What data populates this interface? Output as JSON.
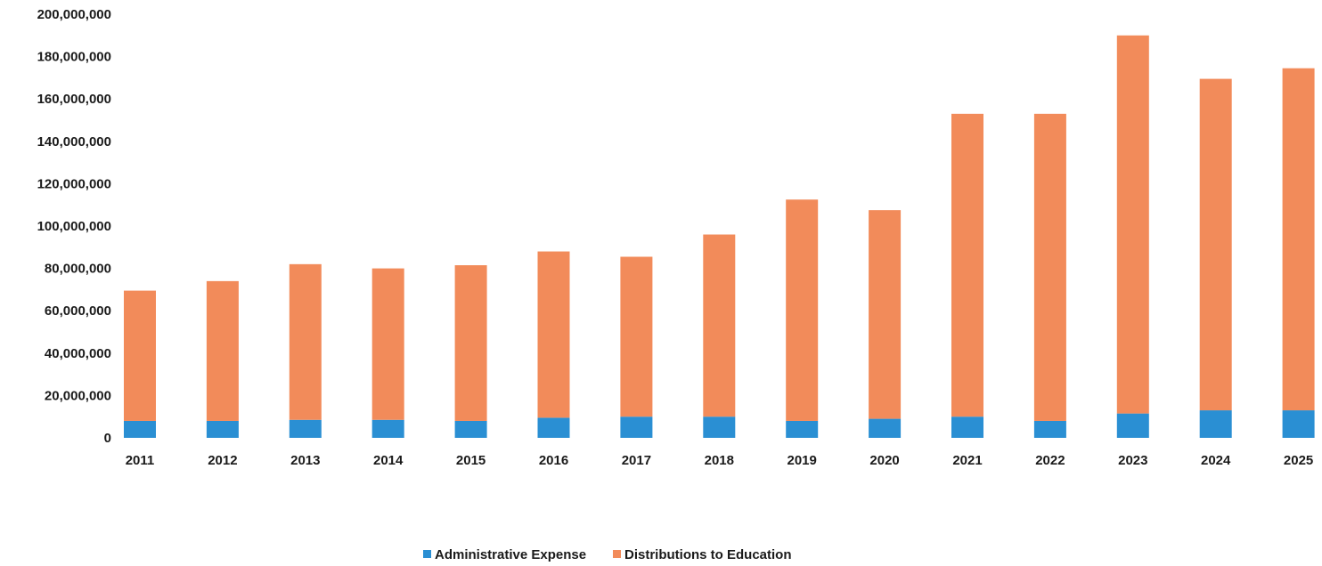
{
  "chart_data": {
    "type": "bar",
    "stacked": true,
    "title": "",
    "xlabel": "",
    "ylabel": "",
    "categories": [
      "2011",
      "2012",
      "2013",
      "2014",
      "2015",
      "2016",
      "2017",
      "2018",
      "2019",
      "2020",
      "2021",
      "2022",
      "2023",
      "2024",
      "2025"
    ],
    "y_ticks": [
      "0",
      "20,000,000",
      "40,000,000",
      "60,000,000",
      "80,000,000",
      "100,000,000",
      "120,000,000",
      "140,000,000",
      "160,000,000",
      "180,000,000",
      "200,000,000"
    ],
    "ylim": [
      0,
      200000000
    ],
    "grid": false,
    "legend_position": "bottom",
    "series": [
      {
        "name": "Administrative Expense",
        "color": "#2a8fd3",
        "values": [
          8000000,
          8000000,
          8500000,
          8500000,
          8000000,
          9500000,
          10000000,
          10000000,
          8000000,
          9000000,
          10000000,
          8000000,
          11500000,
          13000000,
          13000000
        ]
      },
      {
        "name": "Distributions to Education",
        "color": "#f28b5a",
        "values": [
          61500000,
          66000000,
          73500000,
          71500000,
          73500000,
          78500000,
          75500000,
          86000000,
          104500000,
          98500000,
          143000000,
          145000000,
          178500000,
          156500000,
          161500000
        ]
      }
    ]
  }
}
